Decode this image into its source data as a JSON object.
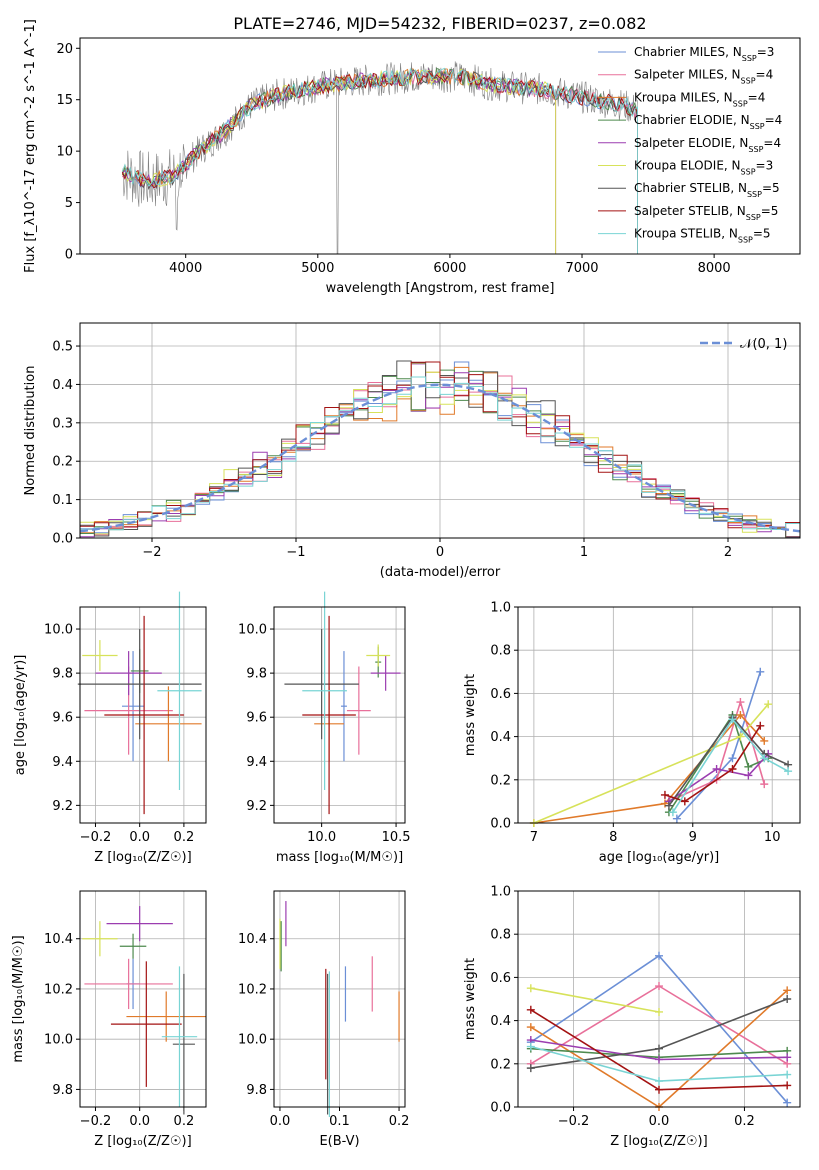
{
  "colors": {
    "series": [
      "#6b8fd6",
      "#e8709a",
      "#e07a2a",
      "#4e8a4e",
      "#9b3db0",
      "#d7e25a",
      "#555555",
      "#a31212",
      "#79d4d4"
    ],
    "spectrum": "#808080",
    "gaussian": "#6b8fd6",
    "grid": "#b0b0b0"
  },
  "chart_data": [
    {
      "type": "line",
      "title": "PLATE=2746, MJD=54232, FIBERID=0237, z=0.082",
      "xlabel": "wavelength [Angstrom, rest frame]",
      "ylabel": "Flux [f_λ10^-17 erg cm^-2 s^-1 A^-1]",
      "xlim": [
        3200,
        8650
      ],
      "ylim": [
        0,
        21
      ],
      "xticks": [
        "4000",
        "5000",
        "6000",
        "7000",
        "8000"
      ],
      "yticks": [
        "0",
        "5",
        "10",
        "15",
        "20"
      ],
      "grid": false,
      "legend": "top-right",
      "legend_labels": [
        "Chabrier MILES, N_SSP=3",
        "Salpeter MILES, N_SSP=4",
        "Kroupa MILES, N_SSP=4",
        "Chabrier ELODIE, N_SSP=4",
        "Salpeter ELODIE, N_SSP=4",
        "Kroupa ELODIE, N_SSP=3",
        "Chabrier STELIB, N_SSP=5",
        "Salpeter STELIB, N_SSP=5",
        "Kroupa STELIB, N_SSP=5"
      ],
      "continuum": {
        "x": [
          3520,
          3700,
          3900,
          4100,
          4300,
          4500,
          4700,
          4900,
          5100,
          5300,
          5500,
          5700,
          5900,
          6100,
          6300,
          6500,
          6700,
          6900,
          7100,
          7300,
          7420
        ],
        "y": [
          8,
          7,
          7.5,
          10,
          12,
          14.5,
          15.5,
          16,
          16.5,
          16.8,
          17,
          17.2,
          17.3,
          17.2,
          16.5,
          16.2,
          16,
          15.5,
          15,
          14.5,
          14
        ]
      }
    },
    {
      "type": "bar",
      "title": "",
      "xlabel": "(data-model)/error",
      "ylabel": "Normed distribution",
      "xlim": [
        -2.5,
        2.5
      ],
      "ylim": [
        0,
        0.56
      ],
      "xticks": [
        "−2",
        "−1",
        "0",
        "1",
        "2"
      ],
      "yticks": [
        "0.0",
        "0.1",
        "0.2",
        "0.3",
        "0.4",
        "0.5"
      ],
      "grid": true,
      "legend": "top-right",
      "legend_labels": [
        "𝒩(0, 1)"
      ],
      "bin_width": 0.1
    },
    {
      "type": "scatter",
      "xlabel": "Z [log₁₀(Z/Z☉)]",
      "ylabel": "age  [log₁₀(age/yr)]",
      "xlim": [
        -0.27,
        0.3
      ],
      "ylim": [
        9.12,
        10.1
      ],
      "xticks": [
        "−0.2",
        "0.0",
        "0.2"
      ],
      "yticks": [
        "9.2",
        "9.4",
        "9.6",
        "9.8",
        "10.0"
      ],
      "grid": true,
      "series": [
        {
          "x": -0.03,
          "y": 9.65,
          "xerr": 0.05,
          "yerr": 0.25
        },
        {
          "x": -0.05,
          "y": 9.63,
          "xerr": 0.2,
          "yerr": 0.2
        },
        {
          "x": 0.13,
          "y": 9.57,
          "xerr": 0.15,
          "yerr": 0.17
        },
        {
          "x": 0.0,
          "y": 9.81,
          "xerr": 0.04,
          "yerr": 0.1
        },
        {
          "x": -0.05,
          "y": 9.8,
          "xerr": 0.15,
          "yerr": 0.1
        },
        {
          "x": -0.18,
          "y": 9.88,
          "xerr": 0.08,
          "yerr": 0.07
        },
        {
          "x": 0.0,
          "y": 9.75,
          "xerr": 0.28,
          "yerr": 0.25
        },
        {
          "x": 0.02,
          "y": 9.61,
          "xerr": 0.18,
          "yerr": 0.45
        },
        {
          "x": 0.18,
          "y": 9.72,
          "xerr": 0.1,
          "yerr": 0.45
        }
      ]
    },
    {
      "type": "scatter",
      "xlabel": "mass [log₁₀(M/M☉)]",
      "ylabel": "",
      "xlim": [
        9.68,
        10.56
      ],
      "ylim": [
        9.12,
        10.1
      ],
      "xticks": [
        "10.0",
        "10.5"
      ],
      "yticks": [
        "9.2",
        "9.4",
        "9.6",
        "9.8",
        "10.0"
      ],
      "grid": true,
      "series": [
        {
          "x": 10.15,
          "y": 9.65,
          "xerr": 0.02,
          "yerr": 0.25
        },
        {
          "x": 10.25,
          "y": 9.63,
          "xerr": 0.08,
          "yerr": 0.2
        },
        {
          "x": 10.05,
          "y": 9.57,
          "xerr": 0.1,
          "yerr": 0.17
        },
        {
          "x": 10.38,
          "y": 9.85,
          "xerr": 0.02,
          "yerr": 0.07
        },
        {
          "x": 10.43,
          "y": 9.8,
          "xerr": 0.1,
          "yerr": 0.08
        },
        {
          "x": 10.38,
          "y": 9.88,
          "xerr": 0.08,
          "yerr": 0.05
        },
        {
          "x": 10.0,
          "y": 9.75,
          "xerr": 0.25,
          "yerr": 0.25
        },
        {
          "x": 10.05,
          "y": 9.61,
          "xerr": 0.18,
          "yerr": 0.45
        },
        {
          "x": 10.02,
          "y": 9.72,
          "xerr": 0.15,
          "yerr": 0.45
        }
      ]
    },
    {
      "type": "line",
      "xlabel": "age  [log₁₀(age/yr)]",
      "ylabel": "mass weight",
      "xlim": [
        6.8,
        10.35
      ],
      "ylim": [
        0,
        1
      ],
      "xticks": [
        "7",
        "8",
        "9",
        "10"
      ],
      "yticks": [
        "0.0",
        "0.2",
        "0.4",
        "0.6",
        "0.8",
        "1.0"
      ],
      "grid": true,
      "series": [
        {
          "x": [
            8.8,
            9.5,
            9.85
          ],
          "y": [
            0.02,
            0.3,
            0.7
          ]
        },
        {
          "x": [
            8.7,
            9.3,
            9.6,
            9.9
          ],
          "y": [
            0.1,
            0.2,
            0.56,
            0.18
          ]
        },
        {
          "x": [
            7.0,
            8.65,
            9.6,
            9.9
          ],
          "y": [
            0,
            0.09,
            0.5,
            0.38
          ]
        },
        {
          "x": [
            8.7,
            9.5,
            9.7,
            9.95
          ],
          "y": [
            0.05,
            0.5,
            0.26,
            0.3
          ]
        },
        {
          "x": [
            8.7,
            9.3,
            9.7,
            9.95
          ],
          "y": [
            0.1,
            0.25,
            0.22,
            0.32
          ]
        },
        {
          "x": [
            7.0,
            9.6,
            9.95
          ],
          "y": [
            0.0,
            0.4,
            0.55
          ]
        },
        {
          "x": [
            8.7,
            9.5,
            9.9,
            10.2
          ],
          "y": [
            0.08,
            0.49,
            0.32,
            0.27
          ]
        },
        {
          "x": [
            8.65,
            8.9,
            9.5,
            9.85
          ],
          "y": [
            0.13,
            0.1,
            0.25,
            0.45
          ]
        },
        {
          "x": [
            8.75,
            9.5,
            9.9,
            10.2
          ],
          "y": [
            0.05,
            0.48,
            0.3,
            0.24
          ]
        }
      ]
    },
    {
      "type": "scatter",
      "xlabel": "Z [log₁₀(Z/Z☉)]",
      "ylabel": "mass [log₁₀(M/M☉)]",
      "xlim": [
        -0.27,
        0.3
      ],
      "ylim": [
        9.73,
        10.59
      ],
      "xticks": [
        "−0.2",
        "0.0",
        "0.2"
      ],
      "yticks": [
        "9.8",
        "10.0",
        "10.2",
        "10.4"
      ],
      "grid": true,
      "series": [
        {
          "x": -0.03,
          "y": 10.22,
          "xerr": 0.03,
          "yerr": 0.1
        },
        {
          "x": -0.05,
          "y": 10.22,
          "xerr": 0.2,
          "yerr": 0.1
        },
        {
          "x": 0.12,
          "y": 10.09,
          "xerr": 0.18,
          "yerr": 0.1
        },
        {
          "x": -0.03,
          "y": 10.37,
          "xerr": 0.06,
          "yerr": 0.05
        },
        {
          "x": 0.0,
          "y": 10.46,
          "xerr": 0.15,
          "yerr": 0.07
        },
        {
          "x": -0.18,
          "y": 10.4,
          "xerr": 0.08,
          "yerr": 0.07
        },
        {
          "x": 0.2,
          "y": 9.98,
          "xerr": 0.05,
          "yerr": 0.28
        },
        {
          "x": 0.03,
          "y": 10.06,
          "xerr": 0.16,
          "yerr": 0.25
        },
        {
          "x": 0.18,
          "y": 10.01,
          "xerr": 0.08,
          "yerr": 0.28
        }
      ]
    },
    {
      "type": "scatter",
      "xlabel": "E(B-V)",
      "ylabel": "",
      "xlim": [
        -0.01,
        0.21
      ],
      "ylim": [
        9.73,
        10.59
      ],
      "xticks": [
        "0.0",
        "0.1",
        "0.2"
      ],
      "yticks": [
        "9.8",
        "10.0",
        "10.2",
        "10.4"
      ],
      "grid": true,
      "series": [
        {
          "x": 0.11,
          "y": 10.18,
          "yerr": 0.11
        },
        {
          "x": 0.155,
          "y": 10.22,
          "yerr": 0.11
        },
        {
          "x": 0.2,
          "y": 10.09,
          "yerr": 0.1
        },
        {
          "x": 0.002,
          "y": 10.37,
          "yerr": 0.1
        },
        {
          "x": 0.01,
          "y": 10.46,
          "yerr": 0.09
        },
        {
          "x": 0.0,
          "y": 10.38,
          "yerr": 0.1
        },
        {
          "x": 0.08,
          "y": 9.98,
          "yerr": 0.28
        },
        {
          "x": 0.077,
          "y": 10.06,
          "yerr": 0.22
        },
        {
          "x": 0.083,
          "y": 9.98,
          "yerr": 0.29
        }
      ]
    },
    {
      "type": "line",
      "xlabel": "Z [log₁₀(Z/Z☉)]",
      "ylabel": "mass weight",
      "xlim": [
        -0.33,
        0.33
      ],
      "ylim": [
        0,
        1
      ],
      "xticks": [
        "−0.2",
        "0.0",
        "0.2"
      ],
      "yticks": [
        "0.0",
        "0.2",
        "0.4",
        "0.6",
        "0.8",
        "1.0"
      ],
      "grid": true,
      "series": [
        {
          "x": [
            -0.3,
            0.0,
            0.3
          ],
          "y": [
            0.3,
            0.7,
            0.02
          ]
        },
        {
          "x": [
            -0.3,
            0.0,
            0.3
          ],
          "y": [
            0.2,
            0.56,
            0.2
          ]
        },
        {
          "x": [
            -0.3,
            0.0,
            0.3
          ],
          "y": [
            0.37,
            0.0,
            0.54
          ]
        },
        {
          "x": [
            -0.3,
            0.0,
            0.3
          ],
          "y": [
            0.27,
            0.23,
            0.26
          ]
        },
        {
          "x": [
            -0.3,
            0.0,
            0.3
          ],
          "y": [
            0.31,
            0.22,
            0.23
          ]
        },
        {
          "x": [
            -0.3,
            0.0
          ],
          "y": [
            0.55,
            0.44
          ]
        },
        {
          "x": [
            -0.3,
            0.0,
            0.3
          ],
          "y": [
            0.18,
            0.27,
            0.5
          ]
        },
        {
          "x": [
            -0.3,
            0.0,
            0.3
          ],
          "y": [
            0.45,
            0.08,
            0.1
          ]
        },
        {
          "x": [
            -0.3,
            0.0,
            0.3
          ],
          "y": [
            0.28,
            0.12,
            0.15
          ]
        }
      ]
    }
  ]
}
